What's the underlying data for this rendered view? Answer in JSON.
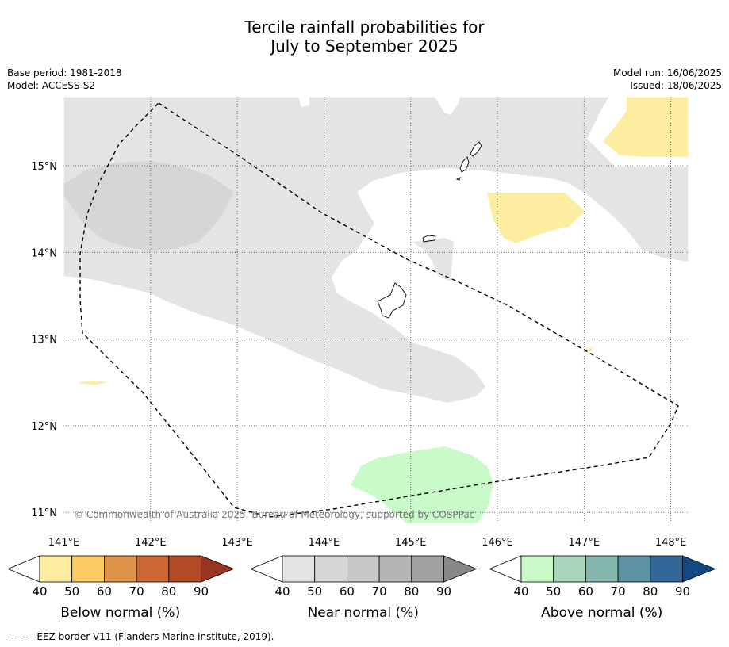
{
  "title": {
    "line1": "Tercile rainfall probabilities for",
    "line2": "July to September 2025"
  },
  "info": {
    "base_period": "Base period: 1981-2018",
    "model": "Model: ACCESS-S2",
    "model_run": "Model run: 16/06/2025",
    "issued": "Issued: 18/06/2025"
  },
  "map": {
    "lon_range": [
      140.9,
      148.2
    ],
    "lat_range": [
      10.8,
      15.8
    ],
    "lon_ticks": [
      "141°E",
      "142°E",
      "143°E",
      "144°E",
      "145°E",
      "146°E",
      "147°E",
      "148°E"
    ],
    "lat_ticks": [
      "15°N",
      "14°N",
      "13°N",
      "12°N",
      "11°N"
    ],
    "gridlines": true,
    "copyright": "© Commonwealth of Australia 2025, Bureau of Meteorology, supported by COSPPac",
    "colors": {
      "near_normal_light": "#e4e4e4",
      "near_normal_mid": "#d6d6d6",
      "below_normal_light": "#fdeda0",
      "above_normal_light": "#c8fbc8",
      "eez_border": "#000000"
    }
  },
  "colorbars": [
    {
      "label": "Below normal (%)",
      "ticks": [
        "40",
        "50",
        "60",
        "70",
        "80",
        "90"
      ],
      "colors": [
        "#feeda0",
        "#fdcc66",
        "#e0944a",
        "#cc6633",
        "#b24a26",
        "#993322"
      ]
    },
    {
      "label": "Near normal (%)",
      "ticks": [
        "40",
        "50",
        "60",
        "70",
        "80",
        "90"
      ],
      "colors": [
        "#e4e4e4",
        "#d6d6d6",
        "#c8c8c8",
        "#b4b4b4",
        "#a0a0a0",
        "#888888"
      ]
    },
    {
      "label": "Above normal (%)",
      "ticks": [
        "40",
        "50",
        "60",
        "70",
        "80",
        "90"
      ],
      "colors": [
        "#c8fbc8",
        "#a6d5b9",
        "#84b6ae",
        "#5c92a1",
        "#336699",
        "#114a80"
      ]
    }
  ],
  "footer": "--  --  -- EEZ border V11 (Flanders Marine Institute, 2019)."
}
